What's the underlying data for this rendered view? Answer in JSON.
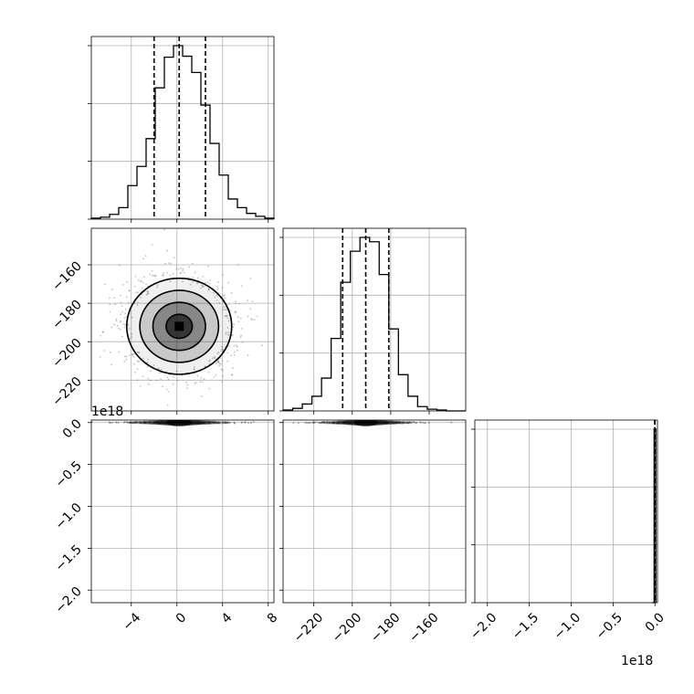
{
  "chart_data": {
    "type": "corner",
    "grid": true,
    "parameters": [
      {
        "ticks": [
          -4,
          0,
          4,
          8
        ],
        "tick_labels": [
          "−4",
          "0",
          "4",
          "8"
        ],
        "range": [
          -7.5,
          8.5
        ]
      },
      {
        "ticks": [
          -220,
          -200,
          -180,
          -160
        ],
        "tick_labels": [
          "−220",
          "−200",
          "−180",
          "−160"
        ],
        "range": [
          -236,
          -141
        ]
      },
      {
        "ticks": [
          -2.0,
          -1.5,
          -1.0,
          -0.5,
          0.0
        ],
        "tick_labels": [
          "−2.0",
          "−1.5",
          "−1.0",
          "−0.5",
          "0.0"
        ],
        "range": [
          -2.15,
          0.03
        ],
        "offset_text": "1e18"
      }
    ],
    "histograms": [
      {
        "parameter": 0,
        "edges": [
          -7.5,
          -6.7,
          -5.9,
          -5.1,
          -4.3,
          -3.5,
          -2.7,
          -1.9,
          -1.1,
          -0.3,
          0.5,
          1.3,
          2.1,
          2.9,
          3.7,
          4.5,
          5.3,
          6.1,
          6.9,
          7.7,
          8.5
        ],
        "counts": [
          1,
          2,
          5,
          12,
          35,
          55,
          84,
          137,
          169,
          181,
          170,
          153,
          119,
          79,
          46,
          21,
          12,
          6,
          3,
          1
        ],
        "quantiles": [
          -2.0,
          0.2,
          2.5
        ]
      },
      {
        "parameter": 1,
        "edges": [
          -236,
          -231,
          -226,
          -221,
          -216,
          -211,
          -206,
          -201,
          -196,
          -191,
          -186,
          -181,
          -176,
          -171,
          -166,
          -161,
          -156,
          -151,
          -146,
          -141
        ],
        "counts": [
          1,
          3,
          8,
          17,
          38,
          84,
          149,
          185,
          201,
          196,
          158,
          95,
          42,
          17,
          5,
          2,
          1,
          0,
          0
        ],
        "quantiles": [
          -205,
          -193,
          -181
        ]
      },
      {
        "parameter": 2,
        "edges": [
          -0.03,
          -0.01,
          0.01
        ],
        "counts": [
          0,
          1
        ],
        "quantiles": [
          -0.002,
          -0.001,
          0.0
        ]
      }
    ],
    "density_2d": [
      {
        "x_param": 0,
        "y_param": 1,
        "center": [
          0.2,
          -192
        ],
        "sigma": [
          2.3,
          12.5
        ],
        "contour_levels": [
          "0.5σ",
          "1σ",
          "1.5σ",
          "2σ"
        ]
      },
      {
        "x_param": 0,
        "y_param": 2,
        "center": [
          0.2,
          0.0
        ],
        "sigma": [
          2.3,
          0.001
        ],
        "collapsed": true
      },
      {
        "x_param": 1,
        "y_param": 2,
        "center": [
          -193,
          0.0
        ],
        "sigma": [
          12.5,
          0.001
        ],
        "collapsed": true
      }
    ]
  },
  "colors": {
    "line": "#000000",
    "grid": "#b0b0b0",
    "scatter": "#555555"
  }
}
